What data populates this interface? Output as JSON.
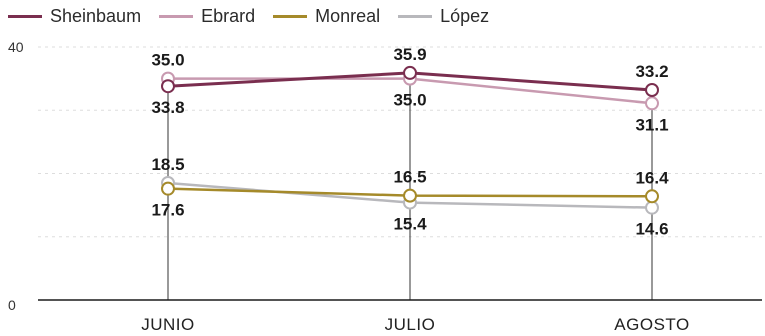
{
  "chart_data": {
    "type": "line",
    "categories": [
      "JUNIO",
      "JULIO",
      "AGOSTO"
    ],
    "series": [
      {
        "name": "Sheinbaum",
        "values": [
          33.8,
          35.9,
          33.2
        ],
        "color": "#7a2e4f"
      },
      {
        "name": "Ebrard",
        "values": [
          35.0,
          35.0,
          31.1
        ],
        "color": "#c89ab0"
      },
      {
        "name": "Monreal",
        "values": [
          17.6,
          16.5,
          16.4
        ],
        "color": "#a58a2a"
      },
      {
        "name": "López",
        "values": [
          18.5,
          15.4,
          14.6
        ],
        "color": "#b8b8bc"
      }
    ],
    "data_labels": {
      "above": [
        [
          "35.0",
          "35.9",
          "33.2"
        ],
        [
          "18.5",
          "16.5",
          "16.4"
        ]
      ],
      "below": [
        [
          "33.8",
          "35.0",
          "31.1"
        ],
        [
          "17.6",
          "15.4",
          "14.6"
        ]
      ]
    },
    "ylim": [
      0,
      40
    ],
    "yticks": [
      "0",
      "40"
    ],
    "grid": true,
    "legend_placement": "top-left"
  }
}
